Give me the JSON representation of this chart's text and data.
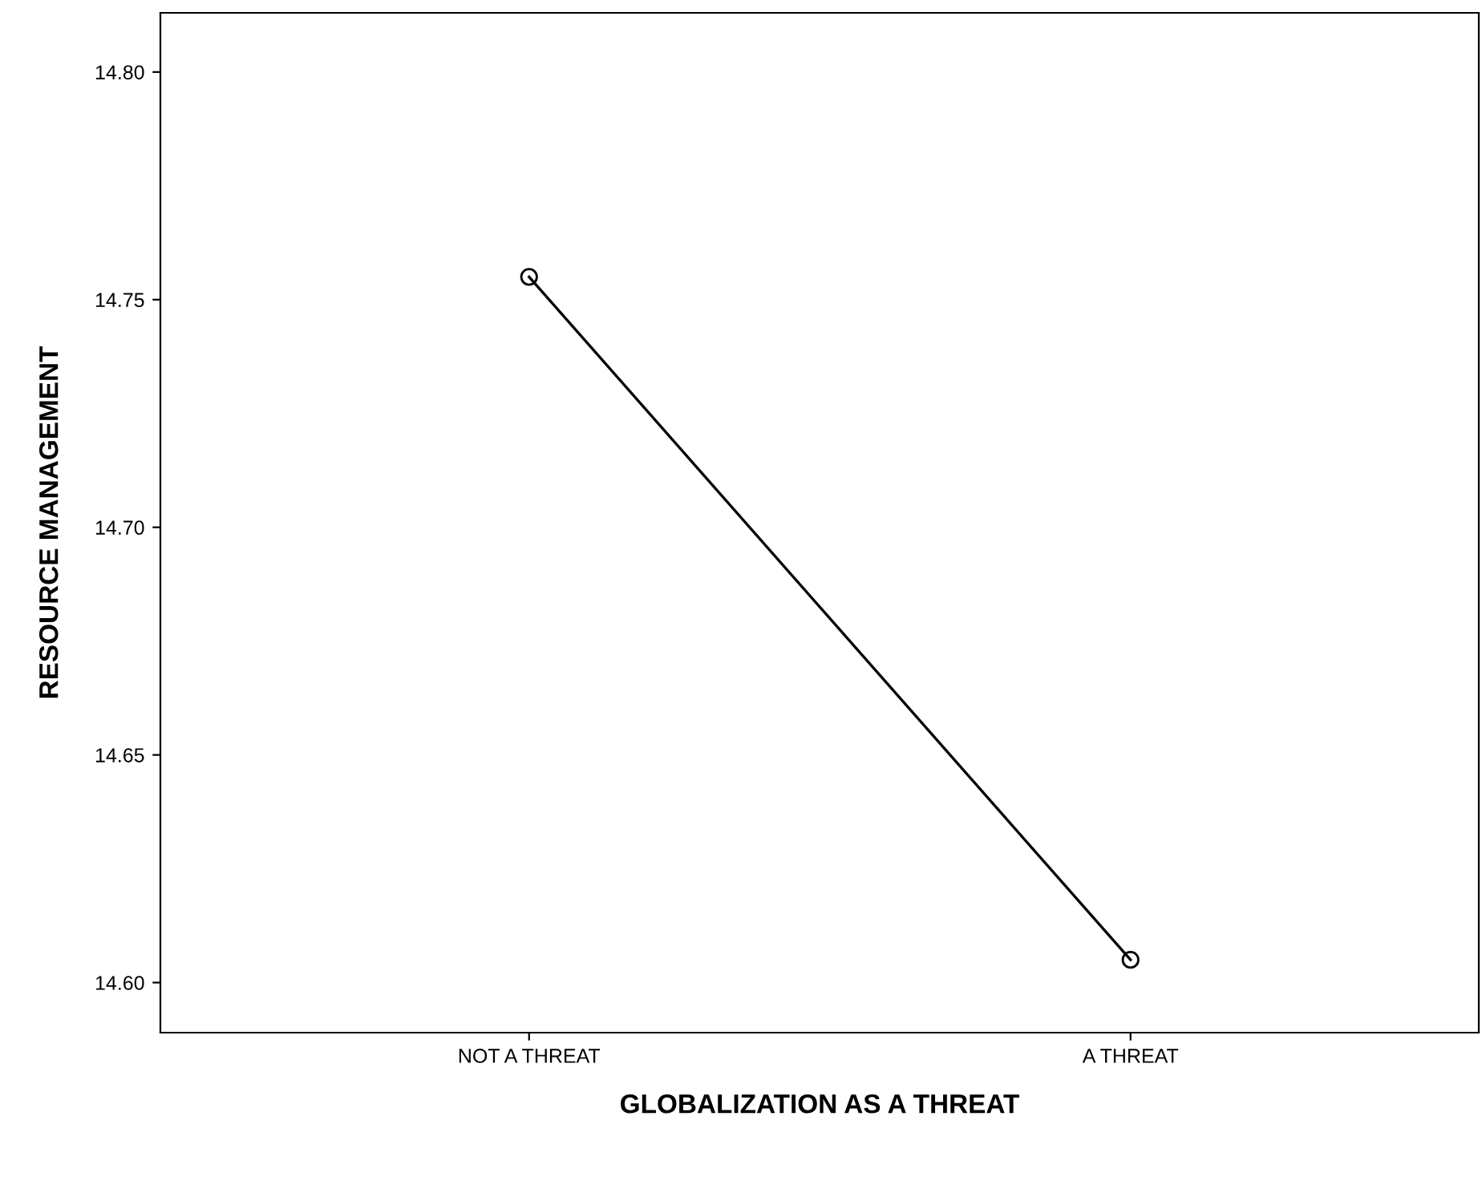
{
  "chart_data": {
    "type": "line",
    "xlabel": "GLOBALIZATION AS A THREAT",
    "ylabel": "RESOURCE MANAGEMENT",
    "categories": [
      "NOT A THREAT",
      "A THREAT"
    ],
    "series": [
      {
        "color": "#000000",
        "values": [
          14.755,
          14.605
        ]
      }
    ],
    "ylim": [
      14.589,
      14.813
    ],
    "yticks": [
      {
        "value": 14.6,
        "label": "14.60"
      },
      {
        "value": 14.65,
        "label": "14.65"
      },
      {
        "value": 14.7,
        "label": "14.70"
      },
      {
        "value": 14.75,
        "label": "14.75"
      },
      {
        "value": 14.8,
        "label": "14.80"
      }
    ],
    "marker": "circle",
    "line_style": "solid",
    "grid": false,
    "legend": false
  }
}
